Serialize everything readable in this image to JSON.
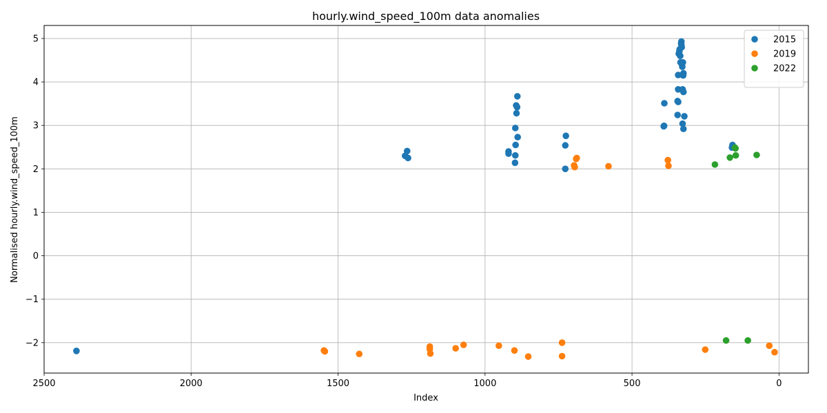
{
  "chart_data": {
    "type": "scatter",
    "title": "hourly.wind_speed_100m data anomalies",
    "xlabel": "Index",
    "ylabel": "Normalised hourly.wind_speed_100m",
    "xlim": [
      2500,
      -100
    ],
    "ylim": [
      -2.7,
      5.3
    ],
    "x_ticks": [
      2500,
      2000,
      1500,
      1000,
      500,
      0
    ],
    "y_ticks": [
      -2,
      -1,
      0,
      1,
      2,
      3,
      4,
      5
    ],
    "grid": true,
    "legend_position": "top-right",
    "series": [
      {
        "name": "2015",
        "color": "#1f77b4",
        "points": [
          [
            2390,
            -2.19
          ],
          [
            1265,
            2.41
          ],
          [
            1272,
            2.3
          ],
          [
            1262,
            2.25
          ],
          [
            920,
            2.4
          ],
          [
            920,
            2.35
          ],
          [
            898,
            2.14
          ],
          [
            897,
            2.31
          ],
          [
            896,
            2.55
          ],
          [
            897,
            2.94
          ],
          [
            893,
            3.28
          ],
          [
            894,
            3.46
          ],
          [
            891,
            3.42
          ],
          [
            890,
            3.67
          ],
          [
            889,
            2.73
          ],
          [
            725,
            2.76
          ],
          [
            727,
            2.54
          ],
          [
            727,
            2.0
          ],
          [
            390,
            3.51
          ],
          [
            392,
            2.98
          ],
          [
            391,
            2.99
          ],
          [
            345,
            3.24
          ],
          [
            345,
            3.56
          ],
          [
            343,
            3.54
          ],
          [
            343,
            3.83
          ],
          [
            343,
            4.16
          ],
          [
            341,
            4.65
          ],
          [
            339,
            4.7
          ],
          [
            338,
            4.75
          ],
          [
            336,
            4.6
          ],
          [
            335,
            4.45
          ],
          [
            333,
            4.89
          ],
          [
            332,
            4.93
          ],
          [
            332,
            4.85
          ],
          [
            331,
            4.8
          ],
          [
            330,
            4.4
          ],
          [
            329,
            4.35
          ],
          [
            327,
            4.45
          ],
          [
            326,
            4.15
          ],
          [
            325,
            4.2
          ],
          [
            328,
            3.83
          ],
          [
            325,
            3.77
          ],
          [
            328,
            3.04
          ],
          [
            325,
            2.92
          ],
          [
            322,
            3.21
          ],
          [
            158,
            2.55
          ],
          [
            160,
            2.49
          ]
        ]
      },
      {
        "name": "2019",
        "color": "#ff7f0e",
        "points": [
          [
            1548,
            -2.18
          ],
          [
            1545,
            -2.2
          ],
          [
            1428,
            -2.26
          ],
          [
            1188,
            -2.09
          ],
          [
            1188,
            -2.15
          ],
          [
            1186,
            -2.25
          ],
          [
            1100,
            -2.13
          ],
          [
            1073,
            -2.05
          ],
          [
            953,
            -2.07
          ],
          [
            900,
            -2.18
          ],
          [
            853,
            -2.32
          ],
          [
            738,
            -2.0
          ],
          [
            738,
            -2.31
          ],
          [
            697,
            2.08
          ],
          [
            695,
            2.04
          ],
          [
            690,
            2.23
          ],
          [
            688,
            2.25
          ],
          [
            580,
            2.06
          ],
          [
            378,
            2.2
          ],
          [
            376,
            2.07
          ],
          [
            251,
            -2.16
          ],
          [
            33,
            -2.07
          ],
          [
            15,
            -2.22
          ]
        ]
      },
      {
        "name": "2022",
        "color": "#2ca02c",
        "points": [
          [
            218,
            2.1
          ],
          [
            180,
            -1.95
          ],
          [
            167,
            2.26
          ],
          [
            150,
            2.49
          ],
          [
            148,
            2.47
          ],
          [
            147,
            2.31
          ],
          [
            106,
            -1.95
          ],
          [
            76,
            2.32
          ]
        ]
      }
    ]
  }
}
